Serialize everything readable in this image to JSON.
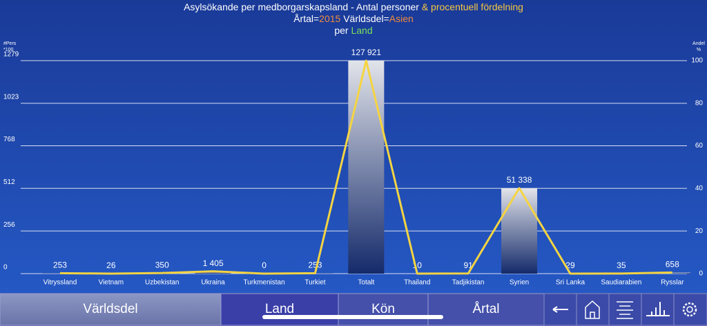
{
  "chart_data": {
    "type": "bar",
    "title_lines": [
      [
        {
          "text": "Asylsökande per medborgarskapsland - Antal personer",
          "color": "#ffffff"
        },
        {
          "text": " & procentuell fördelning",
          "color": "#f5c842"
        }
      ],
      [
        {
          "text": "Årtal=",
          "color": "#ffffff"
        },
        {
          "text": "2015",
          "color": "#f08a3c"
        },
        {
          "text": " Världsdel=",
          "color": "#ffffff"
        },
        {
          "text": "Asien",
          "color": "#f08a3c"
        }
      ],
      [
        {
          "text": "per ",
          "color": "#ffffff"
        },
        {
          "text": "Land",
          "color": "#7be05a"
        }
      ]
    ],
    "y_label": [
      "#Pers",
      "*100"
    ],
    "y2_label": [
      "Andel",
      "%"
    ],
    "categories": [
      "Vitryssland",
      "Vietnam",
      "Uzbekistan",
      "Ukraina",
      "Turkmenistan",
      "Turkiet",
      "Totalt",
      "Thailand",
      "Tadjikistan",
      "Syrien",
      "Sri Lanka",
      "Saudiarabien",
      "Rysslar"
    ],
    "series": [
      {
        "type": "bar",
        "values": [
          2.53,
          0.26,
          3.5,
          14.05,
          0,
          2.53,
          1279.21,
          0.1,
          0.91,
          513.38,
          0.29,
          0.35,
          6.58
        ],
        "value_labels": [
          "253",
          "26",
          "350",
          "1 405",
          "0",
          "253",
          "127 921",
          "10",
          "91",
          "51 338",
          "29",
          "35",
          "658"
        ],
        "color": "#d8dbe4"
      },
      {
        "type": "line",
        "axis": "y2",
        "values": [
          0.2,
          0.02,
          0.27,
          1.1,
          0,
          0.2,
          100,
          0.01,
          0.07,
          40.13,
          0.02,
          0.03,
          0.51
        ],
        "color": "#f5d442"
      }
    ],
    "ylim": [
      0,
      1279
    ],
    "yticks": [
      0,
      256,
      512,
      768,
      1023,
      1279
    ],
    "y2lim": [
      0,
      100
    ],
    "y2ticks": [
      0,
      20,
      40,
      60,
      80,
      100
    ],
    "grid": true,
    "tabs": [
      "Världsdel",
      "Land",
      "Kön",
      "Årtal"
    ],
    "selected_tab": 1
  }
}
